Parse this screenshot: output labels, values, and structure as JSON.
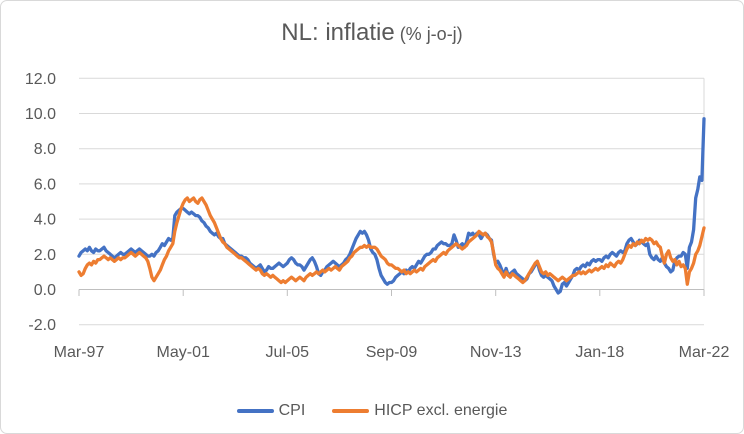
{
  "chart_data": {
    "type": "line",
    "title": "NL: inflatie (% j-o-j)",
    "title_main": "NL: inflatie",
    "title_sub": "(% j-o-j)",
    "x_start": "1997-03",
    "x_end": "2022-03",
    "frequency": "monthly",
    "grid": "horizontal",
    "legend_position": "bottom-center",
    "ylim": [
      -2.0,
      12.0
    ],
    "y_ticks": [
      {
        "value": -2,
        "label": "-2.0"
      },
      {
        "value": 0,
        "label": "0.0"
      },
      {
        "value": 2,
        "label": "2.0"
      },
      {
        "value": 4,
        "label": "4.0"
      },
      {
        "value": 6,
        "label": "6.0"
      },
      {
        "value": 8,
        "label": "8.0"
      },
      {
        "value": 10,
        "label": "10.0"
      },
      {
        "value": 12,
        "label": "12.0"
      }
    ],
    "x_ticks": [
      {
        "index": 0,
        "label": "Mar-97"
      },
      {
        "index": 50,
        "label": "May-01"
      },
      {
        "index": 100,
        "label": "Jul-05"
      },
      {
        "index": 150,
        "label": "Sep-09"
      },
      {
        "index": 200,
        "label": "Nov-13"
      },
      {
        "index": 250,
        "label": "Jan-18"
      },
      {
        "index": 300,
        "label": "Mar-22"
      }
    ],
    "colors": {
      "gridline": "#d9d9d9",
      "axis_line": "#bfbfbf",
      "tick_mark": "#bfbfbf",
      "axis_text": "#595959",
      "title_text": "#595959",
      "plot_background": "#ffffff"
    },
    "series": [
      {
        "key": "cpi",
        "name": "CPI",
        "color": "#4472C4",
        "values": [
          1.9,
          2.1,
          2.2,
          2.3,
          2.2,
          2.4,
          2.2,
          2.1,
          2.3,
          2.2,
          2.2,
          2.3,
          2.4,
          2.2,
          2.1,
          2.0,
          1.9,
          1.8,
          1.9,
          2.0,
          2.1,
          2.0,
          2.0,
          2.1,
          2.2,
          2.3,
          2.2,
          2.1,
          2.2,
          2.3,
          2.2,
          2.1,
          2.0,
          1.9,
          1.9,
          2.0,
          1.9,
          2.1,
          2.2,
          2.4,
          2.6,
          2.5,
          2.7,
          2.9,
          2.8,
          2.9,
          4.2,
          4.4,
          4.5,
          4.6,
          4.6,
          4.5,
          4.4,
          4.3,
          4.4,
          4.3,
          4.2,
          4.2,
          4.1,
          3.9,
          3.8,
          3.6,
          3.5,
          3.3,
          3.2,
          3.1,
          3.2,
          3.0,
          2.9,
          2.9,
          2.6,
          2.5,
          2.4,
          2.3,
          2.2,
          2.1,
          2.0,
          1.9,
          1.9,
          1.8,
          1.8,
          1.7,
          1.5,
          1.4,
          1.3,
          1.2,
          1.3,
          1.4,
          1.2,
          1.0,
          1.1,
          1.3,
          1.2,
          1.2,
          1.3,
          1.4,
          1.5,
          1.4,
          1.3,
          1.4,
          1.5,
          1.7,
          1.8,
          1.7,
          1.5,
          1.4,
          1.4,
          1.3,
          1.1,
          1.3,
          1.5,
          1.7,
          1.8,
          1.6,
          1.3,
          0.9,
          0.8,
          1.0,
          1.1,
          1.3,
          1.4,
          1.5,
          1.6,
          1.5,
          1.4,
          1.3,
          1.4,
          1.5,
          1.7,
          1.8,
          2.0,
          2.3,
          2.6,
          2.9,
          3.1,
          3.3,
          3.2,
          3.3,
          3.1,
          2.8,
          2.3,
          2.1,
          2.0,
          1.7,
          1.2,
          0.8,
          0.6,
          0.4,
          0.3,
          0.4,
          0.4,
          0.5,
          0.7,
          0.8,
          0.9,
          1.0,
          0.9,
          1.1,
          1.0,
          1.2,
          1.3,
          1.2,
          1.4,
          1.6,
          1.5,
          1.7,
          1.9,
          2.0,
          2.0,
          2.1,
          2.3,
          2.3,
          2.5,
          2.6,
          2.7,
          2.6,
          2.6,
          2.5,
          2.5,
          2.6,
          3.1,
          2.8,
          2.4,
          2.5,
          2.6,
          2.4,
          2.7,
          3.2,
          3.1,
          3.2,
          3.0,
          3.2,
          3.1,
          2.9,
          3.1,
          3.2,
          3.1,
          2.9,
          2.8,
          2.0,
          1.5,
          1.6,
          1.4,
          1.1,
          0.8,
          1.2,
          0.8,
          0.9,
          1.0,
          1.1,
          0.9,
          0.8,
          0.7,
          0.6,
          0.5,
          0.6,
          0.9,
          1.0,
          1.2,
          1.4,
          1.6,
          1.1,
          0.8,
          0.7,
          0.8,
          0.7,
          0.6,
          0.5,
          0.2,
          0.0,
          -0.2,
          -0.1,
          0.3,
          0.4,
          0.2,
          0.4,
          0.6,
          0.8,
          1.1,
          1.2,
          1.1,
          1.3,
          1.4,
          1.3,
          1.5,
          1.4,
          1.6,
          1.7,
          1.6,
          1.7,
          1.7,
          1.6,
          1.8,
          1.9,
          1.8,
          2.0,
          2.1,
          2.0,
          1.9,
          2.1,
          2.2,
          2.1,
          2.2,
          2.6,
          2.8,
          2.9,
          2.7,
          2.5,
          2.6,
          2.8,
          2.7,
          2.6,
          2.5,
          2.6,
          2.0,
          1.8,
          1.7,
          1.9,
          1.7,
          1.6,
          1.8,
          1.5,
          1.3,
          1.2,
          1.0,
          1.1,
          1.6,
          1.8,
          1.9,
          1.9,
          2.1,
          2.0,
          1.2,
          2.4,
          2.7,
          3.4,
          5.2,
          5.7,
          6.4,
          6.2,
          9.7
        ]
      },
      {
        "key": "hicp-excl-energie",
        "name": "HICP excl. energie",
        "color": "#ED7D31",
        "values": [
          1.0,
          0.8,
          0.9,
          1.2,
          1.4,
          1.5,
          1.4,
          1.6,
          1.5,
          1.7,
          1.7,
          1.8,
          1.9,
          1.8,
          1.7,
          1.8,
          1.7,
          1.6,
          1.7,
          1.8,
          1.7,
          1.8,
          1.8,
          1.9,
          2.0,
          2.1,
          2.0,
          1.9,
          2.0,
          2.1,
          2.0,
          1.9,
          1.8,
          1.6,
          1.2,
          0.7,
          0.5,
          0.7,
          0.9,
          1.1,
          1.4,
          1.7,
          1.9,
          2.2,
          2.4,
          2.6,
          3.3,
          3.8,
          4.2,
          4.6,
          4.9,
          5.1,
          5.2,
          5.0,
          5.1,
          5.2,
          5.0,
          4.9,
          5.1,
          5.2,
          5.0,
          4.8,
          4.5,
          4.2,
          4.0,
          3.8,
          3.5,
          3.2,
          2.9,
          2.7,
          2.6,
          2.4,
          2.3,
          2.2,
          2.1,
          2.0,
          1.9,
          1.8,
          1.8,
          1.7,
          1.6,
          1.5,
          1.4,
          1.3,
          1.2,
          1.1,
          1.2,
          1.1,
          0.9,
          0.8,
          0.9,
          0.8,
          0.7,
          0.8,
          0.7,
          0.6,
          0.5,
          0.4,
          0.5,
          0.4,
          0.5,
          0.6,
          0.7,
          0.6,
          0.5,
          0.6,
          0.7,
          0.6,
          0.5,
          0.7,
          0.8,
          0.9,
          0.8,
          0.9,
          1.0,
          0.9,
          1.0,
          1.1,
          1.0,
          1.1,
          1.2,
          1.1,
          1.2,
          1.3,
          1.2,
          1.1,
          1.3,
          1.4,
          1.5,
          1.6,
          1.8,
          1.9,
          2.1,
          2.2,
          2.3,
          2.4,
          2.4,
          2.5,
          2.4,
          2.5,
          2.4,
          2.4,
          2.4,
          2.3,
          2.1,
          1.9,
          1.8,
          1.7,
          1.5,
          1.4,
          1.4,
          1.3,
          1.2,
          1.2,
          1.1,
          1.0,
          1.1,
          0.9,
          1.0,
          0.9,
          1.0,
          1.1,
          1.0,
          1.1,
          1.2,
          1.1,
          1.3,
          1.4,
          1.5,
          1.6,
          1.7,
          1.6,
          1.8,
          1.9,
          2.0,
          2.1,
          2.0,
          2.2,
          2.3,
          2.4,
          2.5,
          2.6,
          2.5,
          2.4,
          2.3,
          2.4,
          2.5,
          2.7,
          2.8,
          2.9,
          3.0,
          3.1,
          3.3,
          3.2,
          3.1,
          3.2,
          3.0,
          2.9,
          2.7,
          2.1,
          1.4,
          1.2,
          1.1,
          0.9,
          0.7,
          1.0,
          0.8,
          0.7,
          0.9,
          0.8,
          0.7,
          0.6,
          0.5,
          0.4,
          0.5,
          0.7,
          0.9,
          1.1,
          1.3,
          1.5,
          1.6,
          1.3,
          1.0,
          0.9,
          1.0,
          0.8,
          0.9,
          0.8,
          0.7,
          0.6,
          0.5,
          0.6,
          0.7,
          0.6,
          0.5,
          0.6,
          0.7,
          0.8,
          0.8,
          0.9,
          1.0,
          0.9,
          1.0,
          0.9,
          1.0,
          1.1,
          1.0,
          1.1,
          1.2,
          1.1,
          1.2,
          1.3,
          1.2,
          1.4,
          1.3,
          1.5,
          1.4,
          1.3,
          1.5,
          1.6,
          1.5,
          1.7,
          2.0,
          2.3,
          2.5,
          2.4,
          2.6,
          2.5,
          2.7,
          2.6,
          2.8,
          2.7,
          2.9,
          2.8,
          2.9,
          2.8,
          2.6,
          2.7,
          2.5,
          2.4,
          1.9,
          1.5,
          2.0,
          2.2,
          1.8,
          1.6,
          1.7,
          1.4,
          1.6,
          1.3,
          1.4,
          1.2,
          0.3,
          1.0,
          1.2,
          1.5,
          2.0,
          2.2,
          2.5,
          3.0,
          3.5
        ]
      }
    ]
  }
}
